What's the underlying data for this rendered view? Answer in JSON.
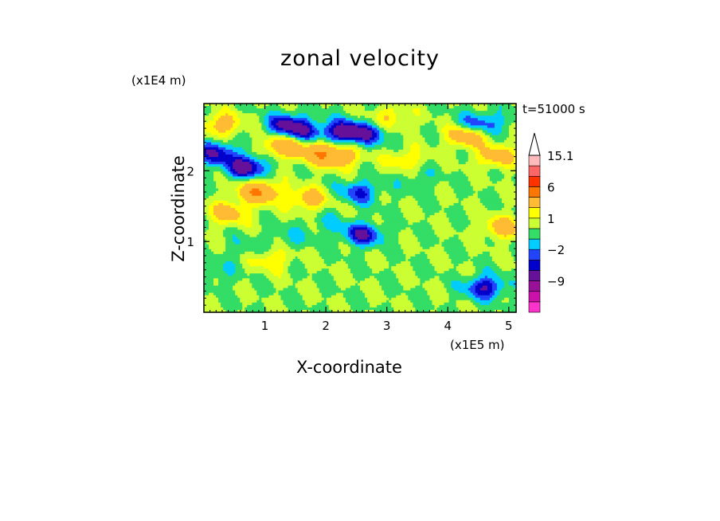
{
  "chart_data": {
    "type": "heatmap",
    "title": "zonal velocity",
    "xlabel": "X-coordinate",
    "ylabel": "Z-coordinate",
    "x_unit": "(x1E5 m)",
    "y_unit": "(x1E4 m)",
    "annotation": "t=51000 s",
    "xlim": [
      0,
      5.12
    ],
    "ylim": [
      0,
      2.95
    ],
    "x_ticks": [
      1,
      2,
      3,
      4,
      5
    ],
    "x_tick_labels": [
      "1",
      "2",
      "3",
      "4",
      "5"
    ],
    "y_ticks": [
      1,
      2
    ],
    "y_tick_labels": [
      "1",
      "2"
    ],
    "colorbar": {
      "levels": [
        -15,
        -12,
        -9,
        -6,
        -3,
        -2,
        -1,
        0,
        1,
        2,
        3,
        6,
        9,
        12,
        15.1
      ],
      "colors": [
        "#ff33cc",
        "#cc11aa",
        "#991199",
        "#661199",
        "#0000cc",
        "#2244ff",
        "#00ccff",
        "#33dd66",
        "#ccff33",
        "#ffff00",
        "#ffbb33",
        "#ff7700",
        "#ff3300",
        "#ff6666",
        "#ffbbbb"
      ],
      "extend": "max",
      "labeled_values": [
        "15.1",
        "6",
        "1",
        "-2",
        "-9"
      ]
    },
    "background_value": 1,
    "features": [
      {
        "x": 0.2,
        "z": 2.25,
        "value": -4
      },
      {
        "x": 0.7,
        "z": 2.05,
        "value": -5
      },
      {
        "x": 1.35,
        "z": 2.65,
        "value": -4
      },
      {
        "x": 1.65,
        "z": 2.55,
        "value": -3
      },
      {
        "x": 2.3,
        "z": 2.55,
        "value": -5
      },
      {
        "x": 2.7,
        "z": 2.52,
        "value": -3
      },
      {
        "x": 2.55,
        "z": 1.7,
        "value": -3
      },
      {
        "x": 2.6,
        "z": 1.1,
        "value": -4
      },
      {
        "x": 4.6,
        "z": 0.35,
        "value": -4
      },
      {
        "x": 4.45,
        "z": 2.65,
        "value": -3
      },
      {
        "x": 0.9,
        "z": 1.7,
        "value": 5
      },
      {
        "x": 1.7,
        "z": 1.6,
        "value": 3
      },
      {
        "x": 0.3,
        "z": 2.65,
        "value": 3
      },
      {
        "x": 1.3,
        "z": 2.35,
        "value": 4
      },
      {
        "x": 1.9,
        "z": 2.25,
        "value": 4
      },
      {
        "x": 2.25,
        "z": 2.2,
        "value": 3
      },
      {
        "x": 4.3,
        "z": 2.5,
        "value": 4
      },
      {
        "x": 4.8,
        "z": 2.2,
        "value": 3
      },
      {
        "x": 4.9,
        "z": 1.2,
        "value": 3
      },
      {
        "x": 0.4,
        "z": 1.4,
        "value": 3
      },
      {
        "x": 1.1,
        "z": 0.75,
        "value": 2
      },
      {
        "x": 3.3,
        "z": 2.15,
        "value": 2
      },
      {
        "x": 0.7,
        "z": 0.9,
        "value": -1
      },
      {
        "x": 1.4,
        "z": 1.05,
        "value": -1
      },
      {
        "x": 2.0,
        "z": 1.25,
        "value": -1
      },
      {
        "x": 0.2,
        "z": 0.55,
        "value": -1
      },
      {
        "x": 3.7,
        "z": 0.7,
        "value": 0
      },
      {
        "x": 4.2,
        "z": 0.85,
        "value": 0
      },
      {
        "x": 3.2,
        "z": 1.55,
        "value": 0
      },
      {
        "x": 3.5,
        "z": 1.9,
        "value": -1
      },
      {
        "x": 4.3,
        "z": 1.3,
        "value": 0
      },
      {
        "x": 0.15,
        "z": 0.1,
        "value": 0
      },
      {
        "x": 2.9,
        "z": 0.8,
        "value": 0
      },
      {
        "x": 4.9,
        "z": 2.7,
        "value": -1
      },
      {
        "x": 3.05,
        "z": 2.75,
        "value": 2
      }
    ]
  }
}
